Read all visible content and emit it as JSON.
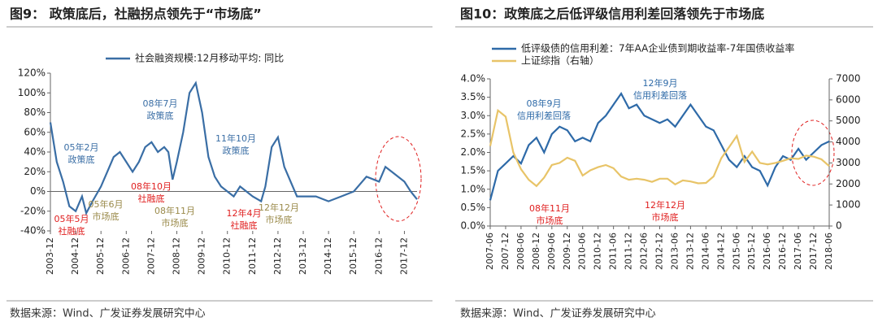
{
  "chart_data": [
    {
      "type": "line",
      "title": "图9：  政策底后，社融拐点领先于“市场底”",
      "source": "数据来源：Wind、广发证券发展研究中心",
      "x": [
        "2003-12",
        "2004-03",
        "2004-06",
        "2004-09",
        "2004-12",
        "2005-03",
        "2005-05",
        "2005-08",
        "2005-12",
        "2006-03",
        "2006-06",
        "2006-09",
        "2006-12",
        "2007-03",
        "2007-06",
        "2007-09",
        "2007-12",
        "2008-03",
        "2008-06",
        "2008-08",
        "2008-10",
        "2008-12",
        "2009-03",
        "2009-06",
        "2009-09",
        "2009-12",
        "2010-03",
        "2010-06",
        "2010-09",
        "2010-12",
        "2011-03",
        "2011-06",
        "2011-09",
        "2011-12",
        "2012-04",
        "2012-06",
        "2012-09",
        "2012-12",
        "2013-03",
        "2013-06",
        "2013-09",
        "2013-12",
        "2014-06",
        "2014-12",
        "2015-06",
        "2015-12",
        "2016-06",
        "2016-12",
        "2017-03",
        "2017-06",
        "2017-12",
        "2018-03",
        "2018-06"
      ],
      "series": [
        {
          "name": "社会融资规模:12月移动平均: 同比",
          "color": "#3a6ea5",
          "values": [
            70,
            30,
            10,
            -15,
            -20,
            -5,
            -22,
            -10,
            5,
            20,
            35,
            40,
            30,
            20,
            30,
            45,
            50,
            40,
            45,
            40,
            12,
            30,
            60,
            100,
            110,
            80,
            35,
            15,
            5,
            0,
            -5,
            5,
            0,
            -5,
            -10,
            5,
            45,
            55,
            25,
            10,
            -5,
            -5,
            -5,
            -10,
            -5,
            0,
            15,
            10,
            25,
            20,
            10,
            0,
            -8
          ]
        }
      ],
      "xlim": [
        "2003-12",
        "2018-06"
      ],
      "xticks": [
        "2003-12",
        "2004-12",
        "2005-12",
        "2006-12",
        "2007-12",
        "2008-12",
        "2009-12",
        "2010-12",
        "2011-12",
        "2012-12",
        "2013-12",
        "2014-12",
        "2015-12",
        "2016-12",
        "2017-12"
      ],
      "ylim": [
        -40,
        120
      ],
      "yticks": [
        {
          "value": -40,
          "label": "-40%"
        },
        {
          "value": -20,
          "label": "-20%"
        },
        {
          "value": 0,
          "label": "0%"
        },
        {
          "value": 20,
          "label": "20%"
        },
        {
          "value": 40,
          "label": "40%"
        },
        {
          "value": 60,
          "label": "60%"
        },
        {
          "value": 80,
          "label": "80%"
        },
        {
          "value": 100,
          "label": "100%"
        },
        {
          "value": 120,
          "label": "120%"
        }
      ],
      "annotations": [
        {
          "lines": [
            "05年2月",
            "政策底"
          ],
          "color": "#3a6ea5"
        },
        {
          "lines": [
            "05年5月",
            "社融底"
          ],
          "color": "#e02020"
        },
        {
          "lines": [
            "05年6月",
            "市场底"
          ],
          "color": "#9a8a4a"
        },
        {
          "lines": [
            "08年7月",
            "政策底"
          ],
          "color": "#3a6ea5"
        },
        {
          "lines": [
            "08年10月",
            "社融底"
          ],
          "color": "#e02020"
        },
        {
          "lines": [
            "08年11月",
            "市场底"
          ],
          "color": "#9a8a4a"
        },
        {
          "lines": [
            "11年10月",
            "政策底"
          ],
          "color": "#3a6ea5"
        },
        {
          "lines": [
            "12年4月",
            "社融底"
          ],
          "color": "#e02020"
        },
        {
          "lines": [
            "12年12月",
            "市场底"
          ],
          "color": "#9a8a4a"
        }
      ]
    },
    {
      "type": "line",
      "title": "图10：政策底之后低评级信用利差回落领先于市场底",
      "source": "数据来源：Wind、广发证券发展研究中心",
      "x": [
        "2007-06",
        "2007-09",
        "2007-12",
        "2008-03",
        "2008-06",
        "2008-09",
        "2008-12",
        "2009-03",
        "2009-06",
        "2009-09",
        "2009-12",
        "2010-03",
        "2010-06",
        "2010-09",
        "2010-12",
        "2011-03",
        "2011-06",
        "2011-09",
        "2011-12",
        "2012-03",
        "2012-06",
        "2012-09",
        "2012-12",
        "2013-03",
        "2013-06",
        "2013-09",
        "2013-12",
        "2014-03",
        "2014-06",
        "2014-09",
        "2014-12",
        "2015-03",
        "2015-06",
        "2015-09",
        "2015-12",
        "2016-03",
        "2016-06",
        "2016-09",
        "2016-12",
        "2017-03",
        "2017-06",
        "2017-09",
        "2017-12",
        "2018-03",
        "2018-06"
      ],
      "series": [
        {
          "name": "低评级债的信用利差：7年AA企业债到期收益率-7年国债收益率",
          "color": "#2e6aa8",
          "values": [
            0.7,
            1.5,
            1.7,
            1.9,
            1.7,
            2.2,
            2.4,
            2.0,
            2.5,
            2.7,
            2.6,
            2.3,
            2.4,
            2.3,
            2.8,
            3.0,
            3.3,
            3.6,
            3.2,
            3.3,
            3.0,
            2.9,
            2.8,
            2.9,
            2.7,
            3.0,
            3.3,
            3.0,
            2.7,
            2.6,
            2.2,
            1.8,
            1.6,
            1.9,
            1.6,
            1.5,
            1.1,
            1.6,
            1.9,
            1.8,
            2.1,
            1.8,
            2.0,
            2.2,
            2.3
          ]
        },
        {
          "name": "上证综指（右轴）",
          "color": "#e8c468",
          "axis": "y2",
          "values": [
            3800,
            5500,
            5200,
            3500,
            2700,
            2200,
            1900,
            2300,
            2900,
            3000,
            3250,
            3100,
            2400,
            2650,
            2800,
            2900,
            2750,
            2350,
            2200,
            2250,
            2200,
            2100,
            2250,
            2250,
            1980,
            2170,
            2120,
            2030,
            2050,
            2360,
            3230,
            3750,
            4280,
            3050,
            3540,
            3000,
            2930,
            3000,
            3100,
            3220,
            3190,
            3350,
            3300,
            3170,
            2850
          ]
        }
      ],
      "xlim": [
        "2007-06",
        "2018-06"
      ],
      "xticks": [
        "2007-06",
        "2007-12",
        "2008-06",
        "2008-12",
        "2009-06",
        "2009-12",
        "2010-06",
        "2010-12",
        "2011-06",
        "2011-12",
        "2012-06",
        "2012-12",
        "2013-06",
        "2013-12",
        "2014-06",
        "2014-12",
        "2015-06",
        "2015-12",
        "2016-06",
        "2016-12",
        "2017-06",
        "2017-12",
        "2018-06"
      ],
      "ylim": [
        0,
        4
      ],
      "yticks": [
        {
          "value": 0,
          "label": "0.0%"
        },
        {
          "value": 0.5,
          "label": "0.5%"
        },
        {
          "value": 1,
          "label": "1.0%"
        },
        {
          "value": 1.5,
          "label": "1.5%"
        },
        {
          "value": 2,
          "label": "2.0%"
        },
        {
          "value": 2.5,
          "label": "2.5%"
        },
        {
          "value": 3,
          "label": "3.0%"
        },
        {
          "value": 3.5,
          "label": "3.5%"
        },
        {
          "value": 4,
          "label": "4.0%"
        }
      ],
      "y2lim": [
        0,
        7000
      ],
      "y2ticks": [
        0,
        1000,
        2000,
        3000,
        4000,
        5000,
        6000,
        7000
      ],
      "annotations": [
        {
          "lines": [
            "08年9月",
            "信用利差回落"
          ],
          "color": "#2e6aa8"
        },
        {
          "lines": [
            "12年9月",
            "信用利差回落"
          ],
          "color": "#2e6aa8"
        },
        {
          "lines": [
            "08年11月",
            "市场底"
          ],
          "color": "#e02020"
        },
        {
          "lines": [
            "12年12月",
            "市场底"
          ],
          "color": "#e02020"
        }
      ]
    }
  ]
}
